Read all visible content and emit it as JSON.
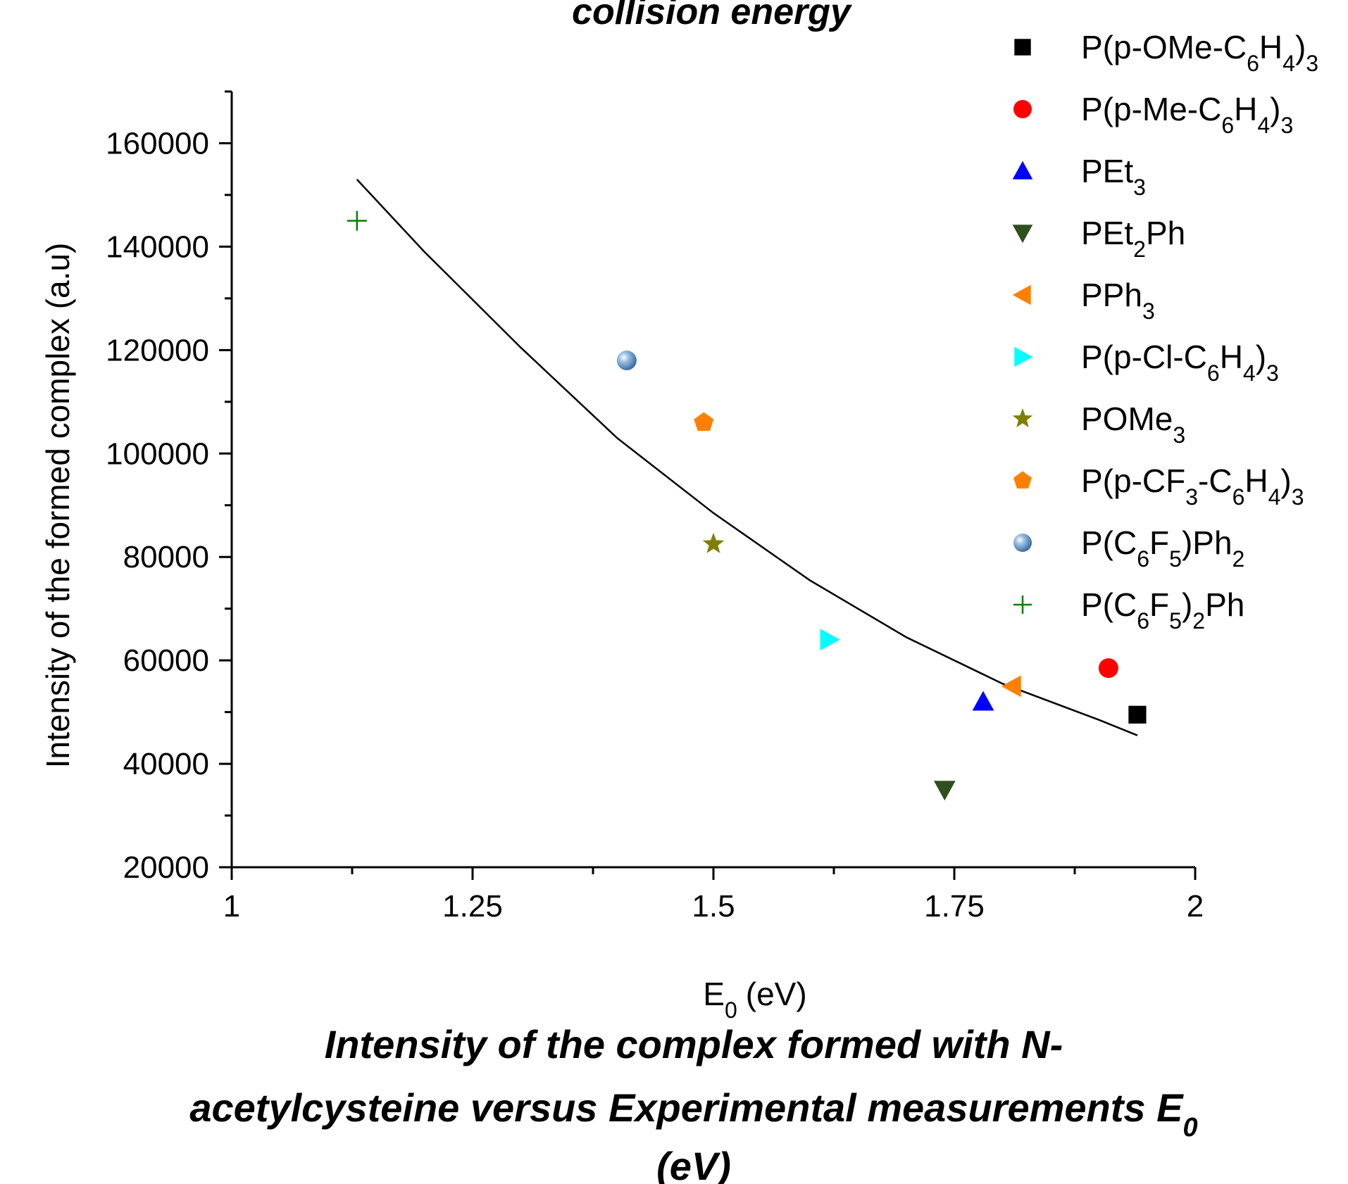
{
  "chart_data": {
    "type": "scatter",
    "title": "collision energy",
    "caption": {
      "line1": "Intensity of the complex formed with N-",
      "line2": "acetylcysteine versus Experimental measurements E",
      "line2_sub": "0",
      "line3": "(eV)"
    },
    "xlabel": "E",
    "xlabel_sub": "0",
    "xlabel_unit": "(eV)",
    "ylabel": "Intensity of the formed complex (a.u)",
    "xlim": [
      1,
      2
    ],
    "ylim": [
      20000,
      170000
    ],
    "x_ticks": [
      1,
      1.25,
      1.5,
      1.75,
      2
    ],
    "x_tick_labels": [
      "1",
      "1.25",
      "1.5",
      "1.75",
      "2"
    ],
    "y_ticks": [
      20000,
      40000,
      60000,
      80000,
      100000,
      120000,
      140000,
      160000
    ],
    "y_tick_labels": [
      "20000",
      "40000",
      "60000",
      "80000",
      "100000",
      "120000",
      "140000",
      "160000"
    ],
    "grid": false,
    "legend_position": "top-right outside",
    "series": [
      {
        "name_parts": [
          {
            "t": "P(p-OMe-C"
          },
          {
            "t": "6",
            "sub": true
          },
          {
            "t": "H"
          },
          {
            "t": "4",
            "sub": true
          },
          {
            "t": ")"
          },
          {
            "t": "3",
            "sub": true
          }
        ],
        "marker": "square",
        "color": "#000000",
        "x": 1.94,
        "y": 49500
      },
      {
        "name_parts": [
          {
            "t": "P(p-Me-C"
          },
          {
            "t": "6",
            "sub": true
          },
          {
            "t": "H"
          },
          {
            "t": "4",
            "sub": true
          },
          {
            "t": ")"
          },
          {
            "t": "3",
            "sub": true
          }
        ],
        "marker": "circle",
        "color": "#ff0000",
        "x": 1.91,
        "y": 58500
      },
      {
        "name_parts": [
          {
            "t": "PEt"
          },
          {
            "t": "3",
            "sub": true
          }
        ],
        "marker": "triangle-up",
        "color": "#0000ff",
        "x": 1.78,
        "y": 52000
      },
      {
        "name_parts": [
          {
            "t": "PEt"
          },
          {
            "t": "2",
            "sub": true
          },
          {
            "t": "Ph"
          }
        ],
        "marker": "triangle-down",
        "color": "#2f4f1f",
        "x": 1.74,
        "y": 35000
      },
      {
        "name_parts": [
          {
            "t": "PPh"
          },
          {
            "t": "3",
            "sub": true
          }
        ],
        "marker": "triangle-left",
        "color": "#ff8000",
        "x": 1.81,
        "y": 55000
      },
      {
        "name_parts": [
          {
            "t": "P(p-Cl-C"
          },
          {
            "t": "6",
            "sub": true
          },
          {
            "t": "H"
          },
          {
            "t": "4",
            "sub": true
          },
          {
            "t": ")"
          },
          {
            "t": "3",
            "sub": true
          }
        ],
        "marker": "triangle-right",
        "color": "#00ffff",
        "x": 1.62,
        "y": 64000
      },
      {
        "name_parts": [
          {
            "t": "POMe"
          },
          {
            "t": "3",
            "sub": true
          }
        ],
        "marker": "star",
        "color": "#7f7f00",
        "x": 1.5,
        "y": 82500
      },
      {
        "name_parts": [
          {
            "t": "P(p-CF"
          },
          {
            "t": "3",
            "sub": true
          },
          {
            "t": "-C"
          },
          {
            "t": "6",
            "sub": true
          },
          {
            "t": "H"
          },
          {
            "t": "4",
            "sub": true
          },
          {
            "t": ")"
          },
          {
            "t": "3",
            "sub": true
          }
        ],
        "marker": "pentagon",
        "color": "#ff8000",
        "x": 1.49,
        "y": 106000
      },
      {
        "name_parts": [
          {
            "t": "P(C"
          },
          {
            "t": "6",
            "sub": true
          },
          {
            "t": "F"
          },
          {
            "t": "5",
            "sub": true
          },
          {
            "t": ")Ph"
          },
          {
            "t": "2",
            "sub": true
          }
        ],
        "marker": "sphere",
        "color": "#6699cc",
        "x": 1.41,
        "y": 118000
      },
      {
        "name_parts": [
          {
            "t": "P(C"
          },
          {
            "t": "6",
            "sub": true
          },
          {
            "t": "F"
          },
          {
            "t": "5",
            "sub": true
          },
          {
            "t": ")"
          },
          {
            "t": "2",
            "sub": true
          },
          {
            "t": "Ph"
          }
        ],
        "marker": "plus",
        "color": "#008000",
        "x": 1.13,
        "y": 145000
      }
    ],
    "fit_curve": {
      "type": "quadratic",
      "color": "#000000",
      "points": [
        [
          1.13,
          153000
        ],
        [
          1.2,
          139000
        ],
        [
          1.3,
          120500
        ],
        [
          1.4,
          103000
        ],
        [
          1.5,
          88500
        ],
        [
          1.6,
          75500
        ],
        [
          1.7,
          64500
        ],
        [
          1.8,
          55500
        ],
        [
          1.9,
          48500
        ],
        [
          1.94,
          45500
        ]
      ]
    }
  }
}
